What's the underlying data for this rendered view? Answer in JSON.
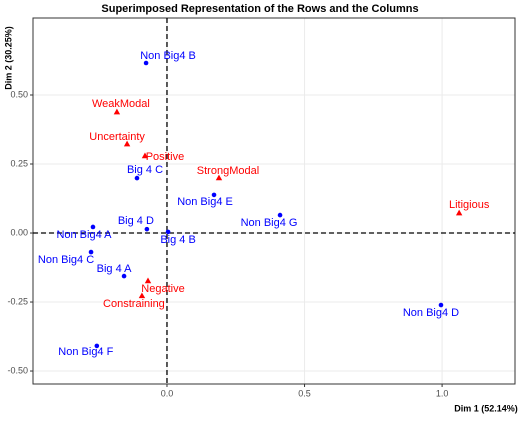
{
  "chart_data": {
    "type": "scatter",
    "title": "Superimposed Representation of the Rows and the Columns",
    "x_label": "Dim 1 (52.14%)",
    "y_label": "Dim 2 (30.25%)",
    "xlim": [
      -0.487,
      1.265
    ],
    "ylim": [
      -0.547,
      0.779
    ],
    "xticks": [
      {
        "value": 0,
        "label": "0.0"
      },
      {
        "value": 0.5,
        "label": "0.5"
      },
      {
        "value": 1,
        "label": "1.0"
      }
    ],
    "yticks": [
      {
        "value": -0.5,
        "label": "-0.50"
      },
      {
        "value": -0.25,
        "label": "-0.25"
      },
      {
        "value": 0,
        "label": "0.00"
      },
      {
        "value": 0.25,
        "label": "0.25"
      },
      {
        "value": 0.5,
        "label": "0.50"
      }
    ],
    "grid": true,
    "series": [
      {
        "color": "#0000ff",
        "marker": "circle",
        "labels": [
          "Non Big4 B",
          "Big 4 C",
          "Non Big4 E",
          "Non Big4 G",
          "Big 4 D",
          "Big 4 B",
          "Non Big4 A",
          "Non Big4 C",
          "Big 4 A",
          "Non Big4 D",
          "Non Big4 F"
        ],
        "x": [
          -0.076,
          -0.109,
          0.171,
          0.411,
          -0.073,
          0.004,
          -0.269,
          -0.276,
          -0.156,
          0.996,
          -0.255
        ],
        "values": [
          0.616,
          0.199,
          0.138,
          0.065,
          0.014,
          0.004,
          0.022,
          -0.069,
          -0.156,
          -0.261,
          -0.409
        ]
      },
      {
        "color": "#ff0000",
        "marker": "triangle",
        "labels": [
          "WeakModal",
          "Uncertainty",
          "Positive",
          "StrongModal",
          "Litigious",
          "Negative",
          "Constraining"
        ],
        "x": [
          -0.182,
          -0.145,
          -0.08,
          0.189,
          1.062,
          -0.069,
          -0.091
        ],
        "values": [
          0.438,
          0.322,
          0.279,
          0.199,
          0.072,
          -0.174,
          -0.228
        ]
      }
    ]
  }
}
